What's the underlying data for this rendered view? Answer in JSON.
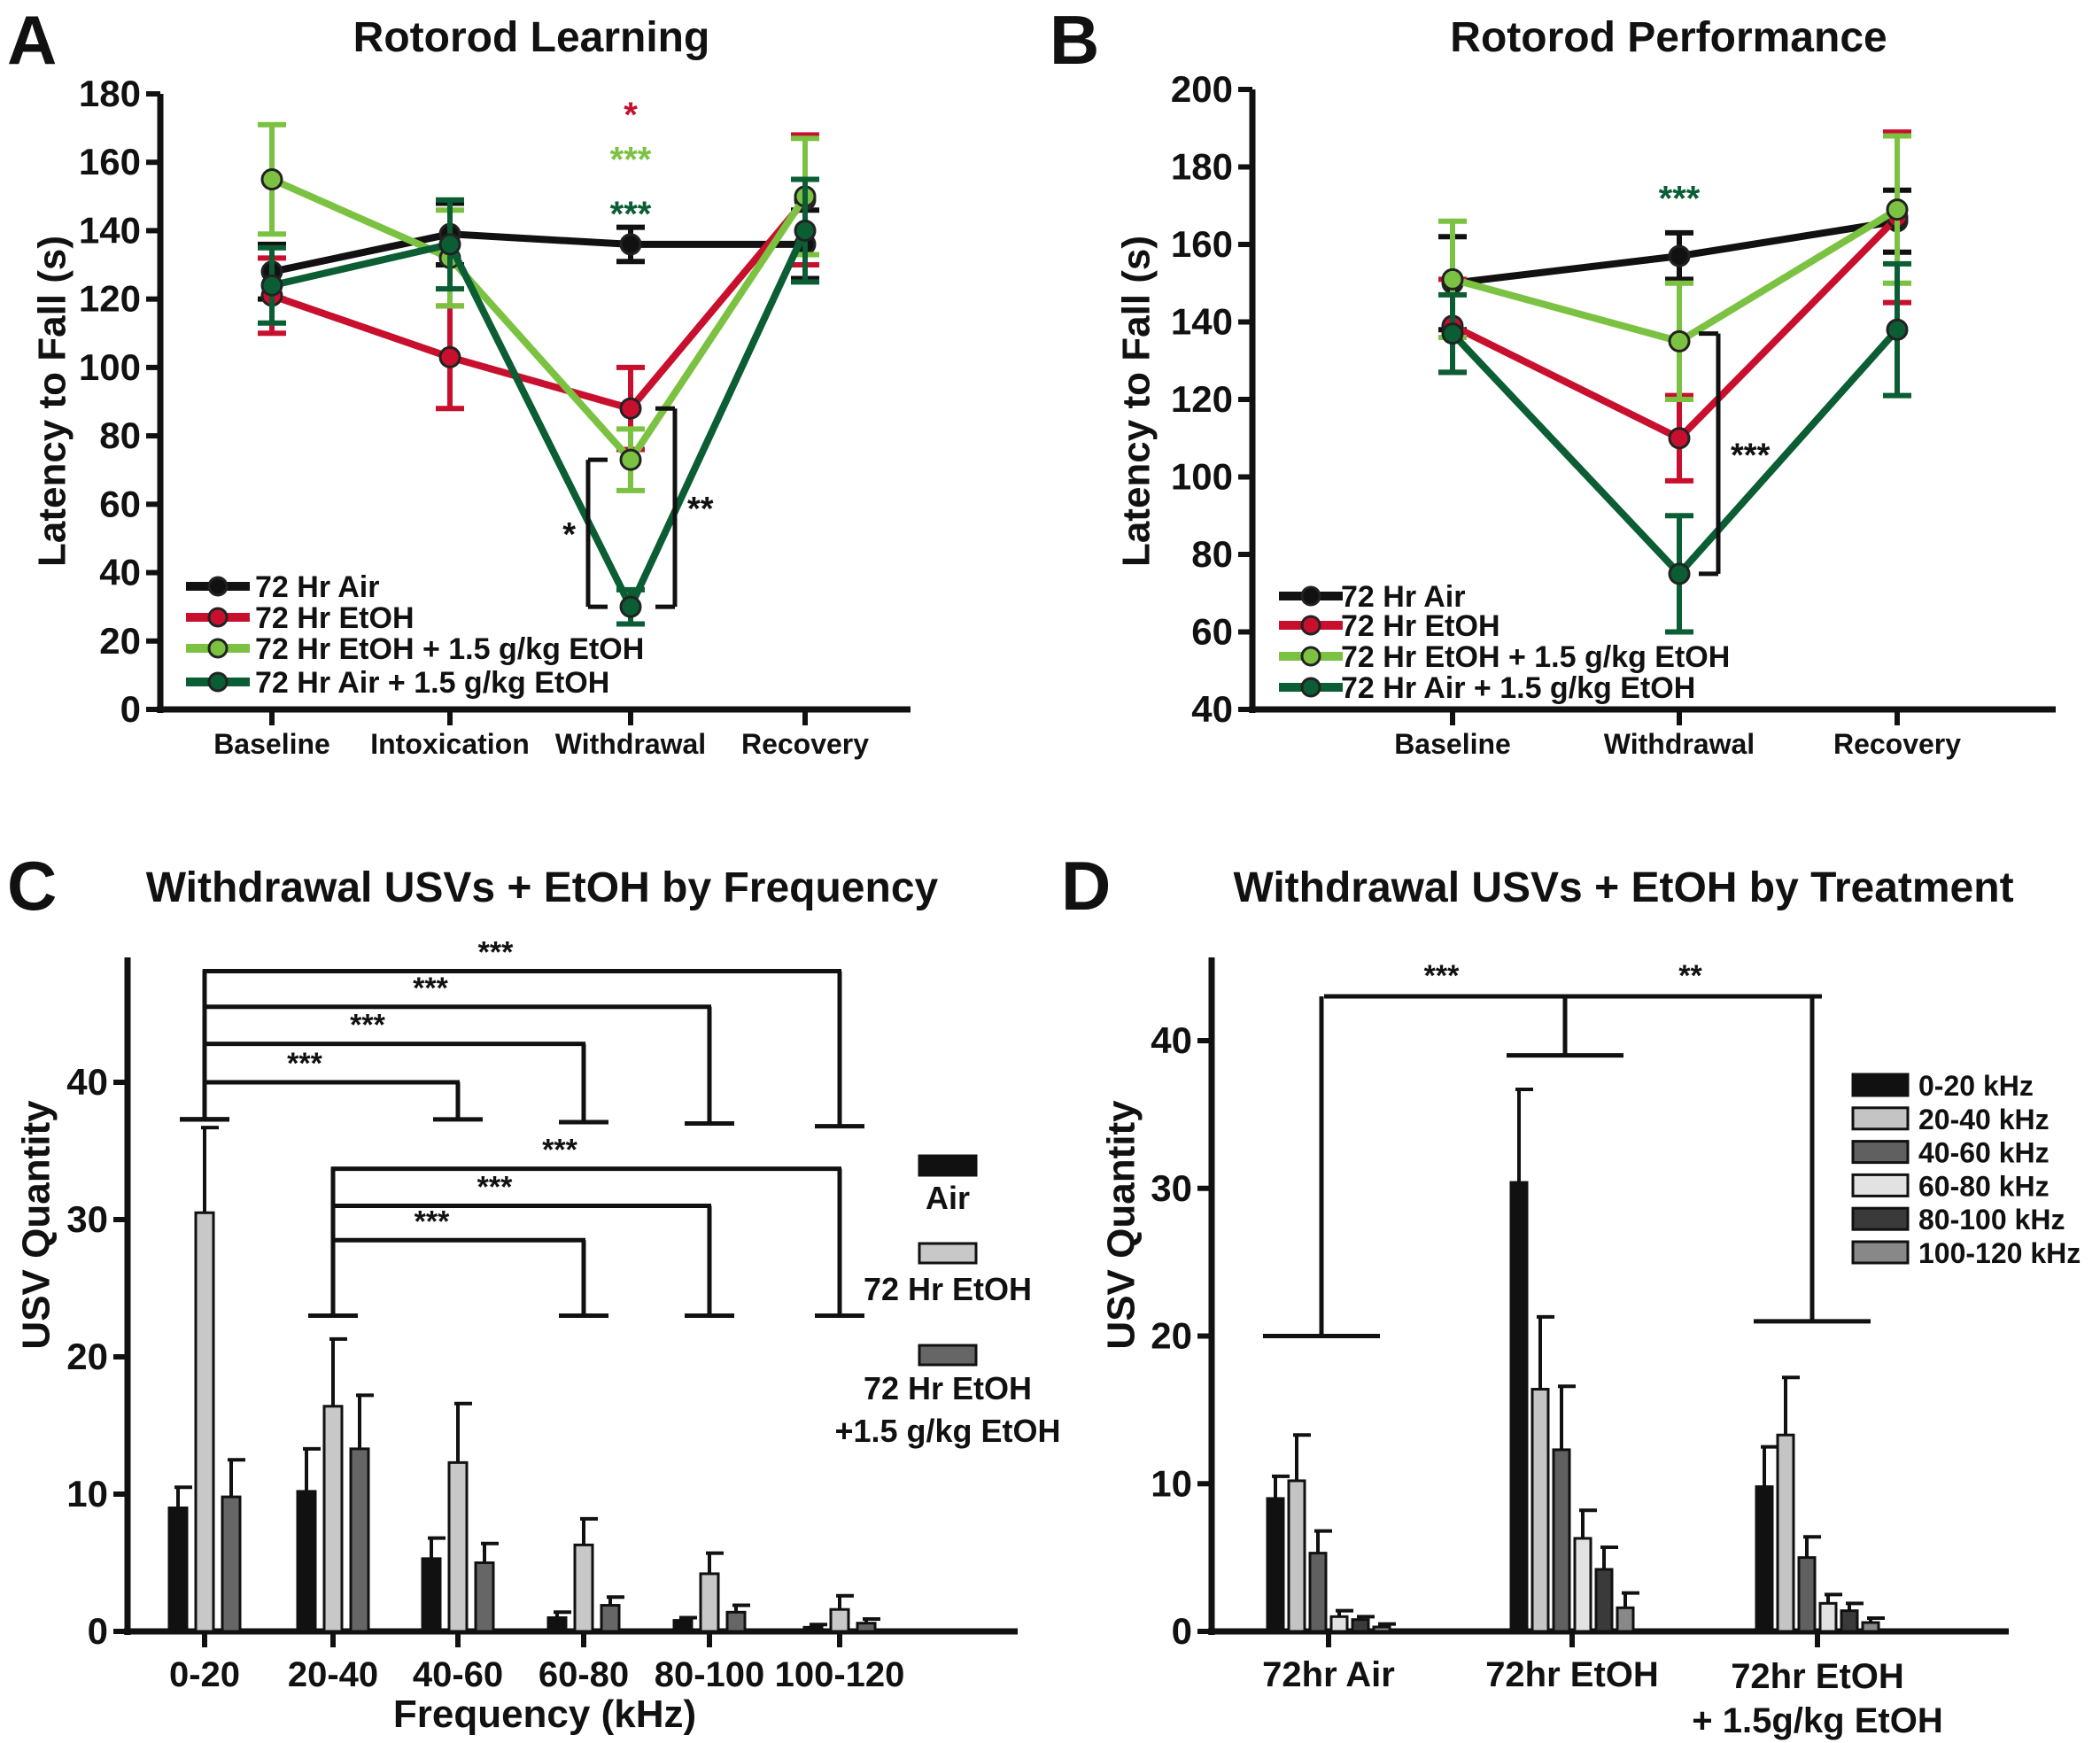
{
  "chart_data": [
    {
      "panel_label": "A",
      "type": "line",
      "title": "Rotorod Learning",
      "xlabel": "",
      "ylabel": "Latency to Fall (s)",
      "categories": [
        "Baseline",
        "Intoxication",
        "Withdrawal",
        "Recovery"
      ],
      "ylim": [
        0,
        180
      ],
      "yticks": [
        0,
        20,
        40,
        60,
        80,
        100,
        120,
        140,
        160,
        180
      ],
      "grid": false,
      "legend_position": "bottom-left",
      "series": [
        {
          "name": "72 Hr Air",
          "color": "#111111",
          "values": [
            128,
            139,
            136,
            136
          ],
          "errors": [
            8,
            9,
            5,
            10
          ]
        },
        {
          "name": "72 Hr EtOH",
          "color": "#c8102e",
          "values": [
            121,
            103,
            88,
            149
          ],
          "errors": [
            11,
            15,
            12,
            19
          ]
        },
        {
          "name": "72 Hr EtOH + 1.5 g/kg EtOH",
          "color": "#7cc242",
          "values": [
            155,
            132,
            73,
            150
          ],
          "errors": [
            16,
            14,
            9,
            17
          ]
        },
        {
          "name": "72 Hr Air + 1.5 g/kg EtOH",
          "color": "#0b5d33",
          "values": [
            124,
            136,
            30,
            140
          ],
          "errors": [
            11,
            13,
            5,
            15
          ]
        }
      ],
      "annotations": [
        {
          "category": "Withdrawal",
          "value": 174,
          "text": "*",
          "color": "#c8102e"
        },
        {
          "category": "Withdrawal",
          "value": 161,
          "text": "***",
          "color": "#7cc242"
        },
        {
          "category": "Withdrawal",
          "value": 145,
          "text": "***",
          "color": "#0b5d33"
        }
      ],
      "brackets": [
        {
          "category": "Withdrawal",
          "from": 73,
          "to": 30,
          "side": "left",
          "label": "*"
        },
        {
          "category": "Withdrawal",
          "from": 88,
          "to": 30,
          "side": "right",
          "label": "**"
        }
      ]
    },
    {
      "panel_label": "B",
      "type": "line",
      "title": "Rotorod Performance",
      "xlabel": "",
      "ylabel": "Latency to Fall (s)",
      "categories": [
        "Baseline",
        "Withdrawal",
        "Recovery"
      ],
      "ylim": [
        40,
        200
      ],
      "yticks": [
        40,
        60,
        80,
        100,
        120,
        140,
        160,
        180,
        200
      ],
      "grid": false,
      "legend_position": "bottom-left",
      "series": [
        {
          "name": "72 Hr Air",
          "color": "#111111",
          "values": [
            150,
            157,
            166
          ],
          "errors": [
            12,
            6,
            8
          ]
        },
        {
          "name": "72 Hr EtOH",
          "color": "#c8102e",
          "values": [
            139,
            110,
            167
          ],
          "errors": [
            12,
            11,
            22
          ]
        },
        {
          "name": "72 Hr EtOH + 1.5 g/kg EtOH",
          "color": "#7cc242",
          "values": [
            151,
            135,
            169
          ],
          "errors": [
            15,
            15,
            19
          ]
        },
        {
          "name": "72 Hr Air + 1.5 g/kg EtOH",
          "color": "#0b5d33",
          "values": [
            137,
            75,
            138
          ],
          "errors": [
            10,
            15,
            17
          ]
        }
      ],
      "annotations": [
        {
          "category": "Withdrawal",
          "value": 172,
          "text": "***",
          "color": "#0b5d33"
        }
      ],
      "brackets": [
        {
          "category": "Withdrawal",
          "from": 137,
          "to": 75,
          "side": "right",
          "label": "***"
        }
      ]
    },
    {
      "panel_label": "C",
      "type": "bar",
      "title": "Withdrawal USVs + EtOH by Frequency",
      "xlabel": "Frequency (kHz)",
      "ylabel": "USV Quantity",
      "categories": [
        "0-20",
        "20-40",
        "40-60",
        "60-80",
        "80-100",
        "100-120"
      ],
      "ylim": [
        0,
        48
      ],
      "yticks": [
        0,
        10,
        20,
        30,
        40
      ],
      "grid": false,
      "legend_position": "right",
      "series": [
        {
          "name": "Air",
          "color": "#111111",
          "values": [
            9.0,
            10.2,
            5.3,
            1.0,
            0.8,
            0.3
          ],
          "errors": [
            1.5,
            3.1,
            1.5,
            0.4,
            0.2,
            0.2
          ]
        },
        {
          "name": "72 Hr EtOH",
          "color": "#c8c8c8",
          "values": [
            30.5,
            16.4,
            12.3,
            6.3,
            4.2,
            1.6
          ],
          "errors": [
            6.2,
            4.9,
            4.3,
            1.9,
            1.5,
            1.0
          ]
        },
        {
          "name": "72 Hr EtOH +1.5 g/kg EtOH",
          "color": "#666666",
          "values": [
            9.8,
            13.3,
            5.0,
            1.9,
            1.4,
            0.6
          ],
          "errors": [
            2.7,
            3.9,
            1.4,
            0.6,
            0.5,
            0.3
          ]
        }
      ],
      "brackets": [
        {
          "from": "0-20",
          "to": "40-60",
          "level": 40,
          "base_from": 37.3,
          "base_to": 37.3,
          "label": "***"
        },
        {
          "from": "0-20",
          "to": "60-80",
          "level": 42.8,
          "base_from": 37.3,
          "base_to": 37.1,
          "label": "***"
        },
        {
          "from": "0-20",
          "to": "80-100",
          "level": 45.5,
          "base_from": 37.3,
          "base_to": 37.0,
          "label": "***"
        },
        {
          "from": "0-20",
          "to": "100-120",
          "level": 48.1,
          "base_from": 37.3,
          "base_to": 36.8,
          "label": "***"
        },
        {
          "from": "20-40",
          "to": "60-80",
          "level": 28.5,
          "base_from": 23,
          "base_to": 23,
          "label": "***"
        },
        {
          "from": "20-40",
          "to": "80-100",
          "level": 31,
          "base_from": 23,
          "base_to": 23,
          "label": "***"
        },
        {
          "from": "20-40",
          "to": "100-120",
          "level": 33.7,
          "base_from": 23,
          "base_to": 23,
          "label": "***"
        }
      ]
    },
    {
      "panel_label": "D",
      "type": "bar",
      "title": "Withdrawal USVs + EtOH by Treatment",
      "xlabel": "",
      "ylabel": "USV Quantity",
      "categories": [
        "72hr Air",
        "72hr EtOH",
        "72hr EtOH + 1.5g/kg EtOH"
      ],
      "ylim": [
        0,
        45
      ],
      "yticks": [
        0,
        10,
        20,
        30,
        40
      ],
      "grid": false,
      "legend_position": "top-right",
      "series": [
        {
          "name": "0-20 kHz",
          "color": "#111111",
          "values": [
            9.0,
            30.4,
            9.8
          ],
          "errors": [
            1.5,
            6.3,
            2.7
          ]
        },
        {
          "name": "20-40 kHz",
          "color": "#c4c4c4",
          "values": [
            10.2,
            16.4,
            13.3
          ],
          "errors": [
            3.1,
            4.9,
            3.9
          ]
        },
        {
          "name": "40-60 kHz",
          "color": "#606060",
          "values": [
            5.3,
            12.3,
            5.0
          ],
          "errors": [
            1.5,
            4.3,
            1.4
          ]
        },
        {
          "name": "60-80 kHz",
          "color": "#e2e2e2",
          "values": [
            1.0,
            6.3,
            1.9
          ],
          "errors": [
            0.4,
            1.9,
            0.6
          ]
        },
        {
          "name": "80-100 kHz",
          "color": "#3a3a3a",
          "values": [
            0.8,
            4.2,
            1.4
          ],
          "errors": [
            0.2,
            1.5,
            0.5
          ]
        },
        {
          "name": "100-120 kHz",
          "color": "#888888",
          "values": [
            0.3,
            1.6,
            0.6
          ],
          "errors": [
            0.2,
            1.0,
            0.3
          ]
        }
      ],
      "bracket": {
        "level": 43,
        "bases": [
          20,
          39,
          21
        ],
        "labels": [
          "***",
          "**"
        ]
      }
    }
  ]
}
